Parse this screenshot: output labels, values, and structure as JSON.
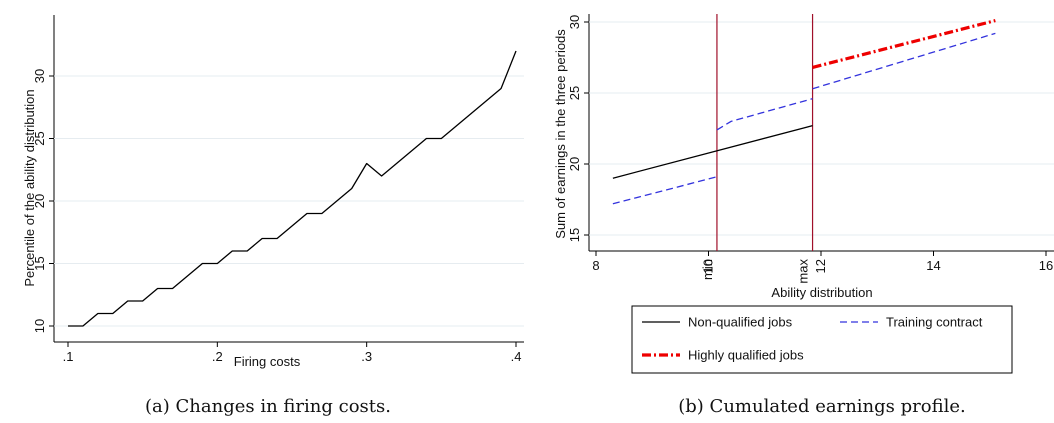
{
  "chart_data": [
    {
      "type": "line",
      "xlabel": "Firing costs",
      "ylabel": "Percentile of the ability distribution",
      "xlim": [
        0.1,
        0.4
      ],
      "ylim": [
        10,
        32
      ],
      "xticks": [
        0.1,
        0.2,
        0.3,
        0.4
      ],
      "xtick_labels": [
        ".1",
        ".2",
        ".3",
        ".4"
      ],
      "yticks": [
        10,
        15,
        20,
        25,
        30
      ],
      "ytick_labels": [
        "10",
        "15",
        "20",
        "25",
        "30"
      ],
      "series": [
        {
          "color": "#000000",
          "x": [
            0.1,
            0.11,
            0.12,
            0.13,
            0.14,
            0.15,
            0.16,
            0.17,
            0.18,
            0.19,
            0.2,
            0.21,
            0.22,
            0.23,
            0.24,
            0.25,
            0.26,
            0.27,
            0.28,
            0.29,
            0.3,
            0.31,
            0.32,
            0.33,
            0.34,
            0.35,
            0.36,
            0.37,
            0.38,
            0.39,
            0.4
          ],
          "y": [
            10,
            10,
            11,
            11,
            12,
            12,
            13,
            13,
            14,
            15,
            15,
            16,
            16,
            17,
            17,
            18,
            19,
            19,
            20,
            21,
            23,
            22,
            23,
            24,
            25,
            25,
            26,
            27,
            28,
            29,
            32
          ]
        }
      ],
      "caption": "(a) Changes in firing costs."
    },
    {
      "type": "line",
      "xlabel": "Ability distribution",
      "ylabel": "Sum of earnings in the three periods",
      "xlim": [
        8,
        16
      ],
      "ylim": [
        15,
        30
      ],
      "xticks": [
        8,
        10,
        12,
        14,
        16
      ],
      "xtick_labels": [
        "8",
        "10",
        "12",
        "14",
        "16"
      ],
      "yticks": [
        15,
        20,
        25,
        30
      ],
      "ytick_labels": [
        "15",
        "20",
        "25",
        "30"
      ],
      "vlines": [
        {
          "x": 10.15,
          "label": "min",
          "color": "#a0102a"
        },
        {
          "x": 11.85,
          "label": "max",
          "color": "#a0102a"
        }
      ],
      "series": [
        {
          "name": "Non-qualified jobs",
          "color": "#000000",
          "style": "solid",
          "x": [
            8.3,
            11.85
          ],
          "y": [
            19.0,
            22.7
          ]
        },
        {
          "name": "Training contract",
          "color": "#3333dd",
          "style": "dash",
          "x": [
            8.3,
            10.15
          ],
          "y": [
            17.2,
            19.1
          ]
        },
        {
          "name": "Training contract",
          "color": "#3333dd",
          "style": "dash",
          "x": [
            10.15,
            10.4,
            11.85
          ],
          "y": [
            22.4,
            23.0,
            24.6
          ]
        },
        {
          "name": "Training contract",
          "color": "#3333dd",
          "style": "dash",
          "x": [
            11.85,
            15.1
          ],
          "y": [
            25.3,
            29.2
          ]
        },
        {
          "name": "Highly qualified jobs",
          "color": "#ee0000",
          "style": "dashdot",
          "x": [
            11.85,
            15.1
          ],
          "y": [
            26.8,
            30.1
          ]
        }
      ],
      "legend": [
        {
          "label": "Non-qualified jobs",
          "style": "solid",
          "color": "#000000"
        },
        {
          "label": "Training contract",
          "style": "dash",
          "color": "#3333dd"
        },
        {
          "label": "Highly qualified jobs",
          "style": "dashdot",
          "color": "#ee0000"
        }
      ],
      "legend_position": "bottom",
      "caption": "(b) Cumulated earnings profile."
    }
  ]
}
